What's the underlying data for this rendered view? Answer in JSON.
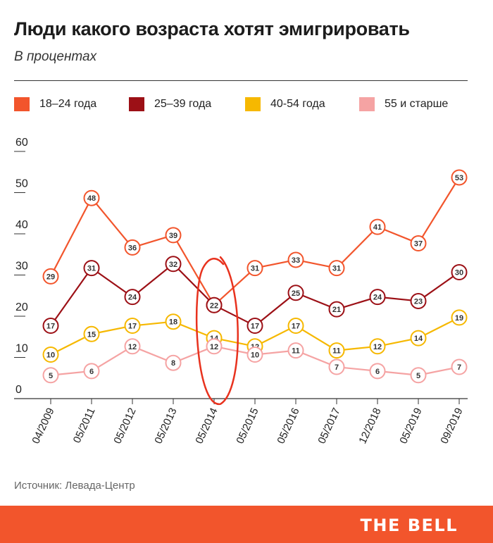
{
  "chart_data": {
    "type": "line",
    "title": "Люди какого возраста хотят эмигрировать",
    "subtitle": "В процентах",
    "ylim": [
      0,
      60
    ],
    "yticks": [
      "0",
      "10",
      "20",
      "30",
      "40",
      "50",
      "60"
    ],
    "categories": [
      "04/2009",
      "05/2011",
      "05/2012",
      "05/2013",
      "05/2014",
      "05/2015",
      "05/2016",
      "05/2017",
      "12/2018",
      "05/2019",
      "09/2019"
    ],
    "legend_position": "top",
    "series": [
      {
        "name": "18–24 года",
        "color": "#f2552c",
        "values": [
          29,
          48,
          36,
          39,
          22,
          31,
          33,
          31,
          41,
          37,
          53
        ]
      },
      {
        "name": "25–39 года",
        "color": "#9c1016",
        "values": [
          17,
          31,
          24,
          32,
          22,
          17,
          25,
          21,
          24,
          23,
          30
        ]
      },
      {
        "name": "40-54 года",
        "color": "#f6b800",
        "values": [
          10,
          15,
          17,
          18,
          14,
          12,
          17,
          11,
          12,
          14,
          19
        ]
      },
      {
        "name": "55 и старше",
        "color": "#f5a3a3",
        "values": [
          5,
          6,
          12,
          8,
          12,
          10,
          11,
          7,
          6,
          5,
          7
        ]
      }
    ],
    "highlight": {
      "category": "05/2014",
      "color": "#e8321e"
    },
    "grid": false
  },
  "source": "Источник:  Левада-Центр",
  "brand": "THE BELL"
}
